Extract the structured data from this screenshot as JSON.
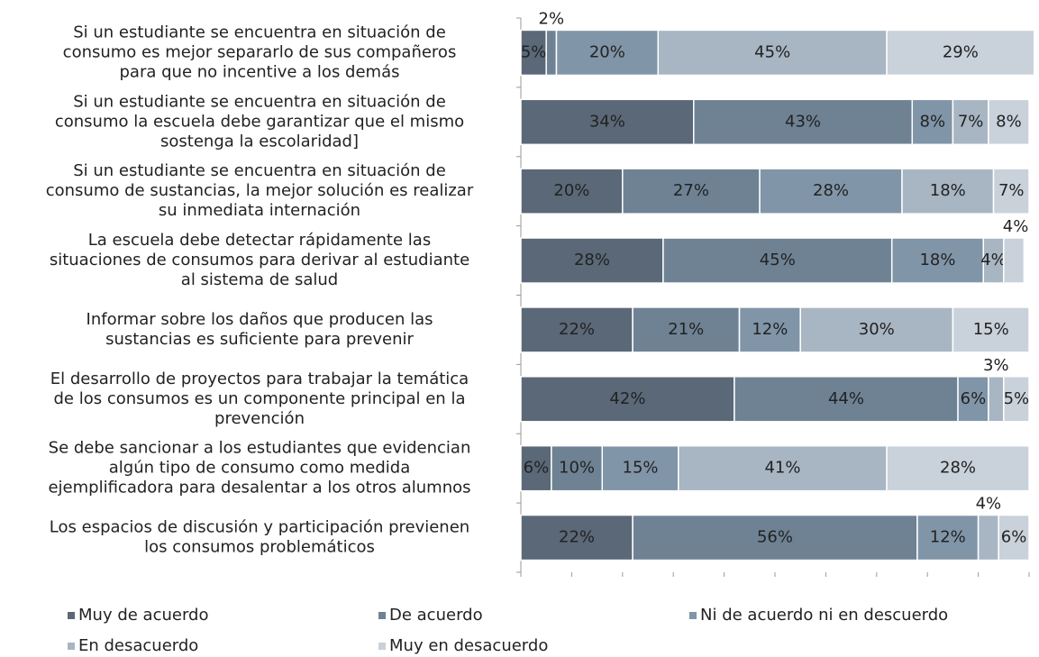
{
  "chart_data": {
    "type": "stacked-bar-horizontal",
    "categories": [
      [
        "Si un estudiante se encuentra en situación de",
        "consumo es mejor separarlo de sus compañeros",
        "para que no incentive a los demás"
      ],
      [
        "Si un estudiante se encuentra en situación de",
        "consumo la escuela debe garantizar que el mismo",
        "sostenga la escolaridad]"
      ],
      [
        "Si un estudiante se encuentra en situación de",
        "consumo de sustancias, la mejor solución es realizar",
        "su inmediata internación"
      ],
      [
        "La escuela debe detectar rápidamente las",
        "situaciones de consumos para derivar al estudiante",
        "al sistema de salud"
      ],
      [
        "Informar sobre los daños que producen las",
        "sustancias es suficiente para prevenir"
      ],
      [
        "El desarrollo de proyectos para trabajar la temática",
        "de los consumos es un componente principal en la",
        "prevención"
      ],
      [
        "Se debe sancionar a los estudiantes que evidencian",
        "algún tipo de consumo como medida",
        "ejemplificadora para desalentar a los otros alumnos"
      ],
      [
        "Los espacios de discusión y participación previenen",
        "los consumos problemáticos"
      ]
    ],
    "series": [
      {
        "name": "Muy de acuerdo",
        "color": "#5a6877",
        "values": [
          5,
          34,
          20,
          28,
          22,
          42,
          6,
          22
        ],
        "value_labels": [
          "5%",
          "34%",
          "20%",
          "28%",
          "22%",
          "42%",
          "6%",
          "22%"
        ]
      },
      {
        "name": "De acuerdo",
        "color": "#6e8294",
        "values": [
          2,
          43,
          27,
          45,
          21,
          44,
          10,
          56
        ],
        "value_labels": [
          "2%",
          "43%",
          "27%",
          "45%",
          "21%",
          "44%",
          "10%",
          "56%"
        ]
      },
      {
        "name": "Ni de acuerdo ni en descuerdo",
        "color": "#8195a8",
        "values": [
          20,
          8,
          28,
          18,
          12,
          6,
          15,
          12
        ],
        "value_labels": [
          "20%",
          "8%",
          "28%",
          "18%",
          "12%",
          "6%",
          "15%",
          "12%"
        ]
      },
      {
        "name": "En desacuerdo",
        "color": "#a8b5c2",
        "values": [
          45,
          7,
          18,
          4,
          30,
          3,
          41,
          4
        ],
        "value_labels": [
          "45%",
          "7%",
          "18%",
          "4%",
          "30%",
          "3%",
          "41%",
          "4%"
        ]
      },
      {
        "name": "Muy en desacuerdo",
        "color": "#c9d1da",
        "values": [
          29,
          8,
          7,
          4,
          15,
          5,
          28,
          6
        ],
        "value_labels": [
          "29%",
          "8%",
          "7%",
          "4%",
          "15%",
          "5%",
          "28%",
          "6%"
        ]
      }
    ],
    "xlim": [
      0,
      100
    ],
    "xticks": [
      0,
      10,
      20,
      30,
      40,
      50,
      60,
      70,
      80,
      90,
      100
    ],
    "legend": "bottom"
  }
}
